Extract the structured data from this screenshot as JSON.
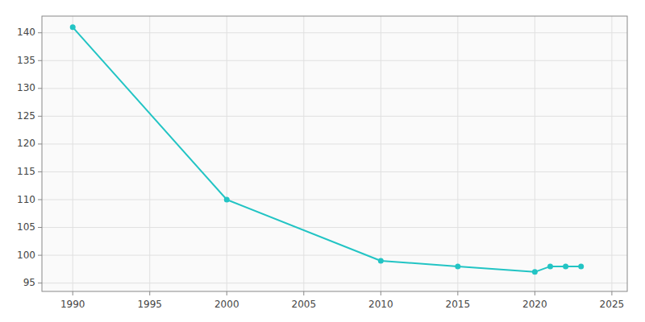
{
  "chart_data": {
    "type": "line",
    "x": [
      1990,
      2000,
      2010,
      2015,
      2020,
      2021,
      2022,
      2023
    ],
    "values": [
      141,
      110,
      99,
      98,
      97,
      98,
      98,
      98
    ],
    "color": "#22c4c4",
    "marker": "circle",
    "xlim": [
      1988,
      2026
    ],
    "ylim": [
      93.5,
      143
    ],
    "xticks": [
      1990,
      1995,
      2000,
      2005,
      2010,
      2015,
      2020,
      2025
    ],
    "yticks": [
      95,
      100,
      105,
      110,
      115,
      120,
      125,
      130,
      135,
      140
    ],
    "grid": true
  }
}
